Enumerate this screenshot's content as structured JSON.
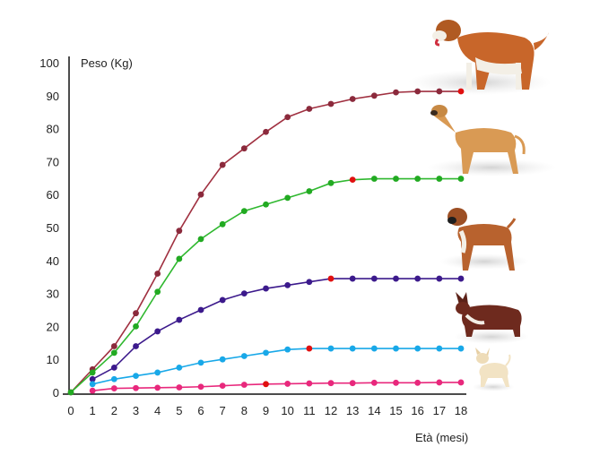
{
  "chart_data": {
    "type": "line",
    "ylabel": "Peso (Kg)",
    "xlabel": "Età (mesi)",
    "xlim": [
      0,
      18
    ],
    "ylim": [
      0,
      100
    ],
    "x_ticks": [
      "0",
      "1",
      "2",
      "3",
      "4",
      "5",
      "6",
      "7",
      "8",
      "9",
      "10",
      "11",
      "12",
      "13",
      "14",
      "15",
      "16",
      "17",
      "18"
    ],
    "y_ticks": [
      "0",
      "10",
      "20",
      "30",
      "40",
      "50",
      "60",
      "70",
      "80",
      "90",
      "100"
    ],
    "grid": false,
    "legend": "none",
    "series": [
      {
        "color": "#a03040",
        "marker_color": "#8b2a3c",
        "highlight_color": "#e01010",
        "icon": "saint-bernard-dog-icon",
        "points": [
          [
            0,
            0
          ],
          [
            1,
            7
          ],
          [
            2,
            14
          ],
          [
            3,
            24
          ],
          [
            4,
            36
          ],
          [
            5,
            49
          ],
          [
            6,
            60
          ],
          [
            7,
            69
          ],
          [
            8,
            74
          ],
          [
            9,
            79
          ],
          [
            10,
            83.5
          ],
          [
            11,
            86
          ],
          [
            12,
            87.5
          ],
          [
            13,
            89
          ],
          [
            14,
            90
          ],
          [
            15,
            91
          ],
          [
            16,
            91.3
          ],
          [
            17,
            91.3
          ],
          [
            18,
            91.3
          ]
        ],
        "highlight_index": 18
      },
      {
        "color": "#2fb82f",
        "marker_color": "#22aa22",
        "highlight_color": "#e01010",
        "icon": "great-dane-dog-icon",
        "points": [
          [
            0,
            0
          ],
          [
            1,
            6
          ],
          [
            2,
            12
          ],
          [
            3,
            20
          ],
          [
            4,
            30.5
          ],
          [
            5,
            40.5
          ],
          [
            6,
            46.5
          ],
          [
            7,
            51
          ],
          [
            8,
            55
          ],
          [
            9,
            57
          ],
          [
            10,
            59
          ],
          [
            11,
            61
          ],
          [
            12,
            63.5
          ],
          [
            13,
            64.5
          ],
          [
            14,
            64.8
          ],
          [
            15,
            64.8
          ],
          [
            16,
            64.8
          ],
          [
            17,
            64.8
          ],
          [
            18,
            64.8
          ]
        ],
        "highlight_index": 13
      },
      {
        "color": "#3c1a8c",
        "marker_color": "#3c1a8c",
        "highlight_color": "#e01010",
        "icon": "boxer-dog-icon",
        "points": [
          [
            1,
            4
          ],
          [
            2,
            7.5
          ],
          [
            3,
            14
          ],
          [
            4,
            18.5
          ],
          [
            5,
            22
          ],
          [
            6,
            25
          ],
          [
            7,
            28
          ],
          [
            8,
            30
          ],
          [
            9,
            31.5
          ],
          [
            10,
            32.5
          ],
          [
            11,
            33.5
          ],
          [
            12,
            34.5
          ],
          [
            13,
            34.5
          ],
          [
            14,
            34.5
          ],
          [
            15,
            34.5
          ],
          [
            16,
            34.5
          ],
          [
            17,
            34.5
          ],
          [
            18,
            34.5
          ]
        ],
        "highlight_index": 11
      },
      {
        "color": "#18a8e8",
        "marker_color": "#18a8e8",
        "highlight_color": "#e01010",
        "icon": "corgi-dog-icon",
        "points": [
          [
            1,
            2.5
          ],
          [
            2,
            4
          ],
          [
            3,
            5
          ],
          [
            4,
            6
          ],
          [
            5,
            7.5
          ],
          [
            6,
            9
          ],
          [
            7,
            10
          ],
          [
            8,
            11
          ],
          [
            9,
            12
          ],
          [
            10,
            13
          ],
          [
            11,
            13.3
          ],
          [
            12,
            13.3
          ],
          [
            13,
            13.3
          ],
          [
            14,
            13.3
          ],
          [
            15,
            13.3
          ],
          [
            16,
            13.3
          ],
          [
            17,
            13.3
          ],
          [
            18,
            13.3
          ]
        ],
        "highlight_index": 10
      },
      {
        "color": "#e8287c",
        "marker_color": "#e8287c",
        "highlight_color": "#e01010",
        "icon": "chihuahua-dog-icon",
        "points": [
          [
            1,
            0.5
          ],
          [
            2,
            1.2
          ],
          [
            3,
            1.3
          ],
          [
            4,
            1.4
          ],
          [
            5,
            1.5
          ],
          [
            6,
            1.7
          ],
          [
            7,
            2
          ],
          [
            8,
            2.3
          ],
          [
            9,
            2.5
          ],
          [
            10,
            2.6
          ],
          [
            11,
            2.7
          ],
          [
            12,
            2.8
          ],
          [
            13,
            2.8
          ],
          [
            14,
            2.9
          ],
          [
            15,
            2.9
          ],
          [
            16,
            2.9
          ],
          [
            17,
            3
          ],
          [
            18,
            3
          ]
        ],
        "highlight_index": 8
      }
    ]
  }
}
